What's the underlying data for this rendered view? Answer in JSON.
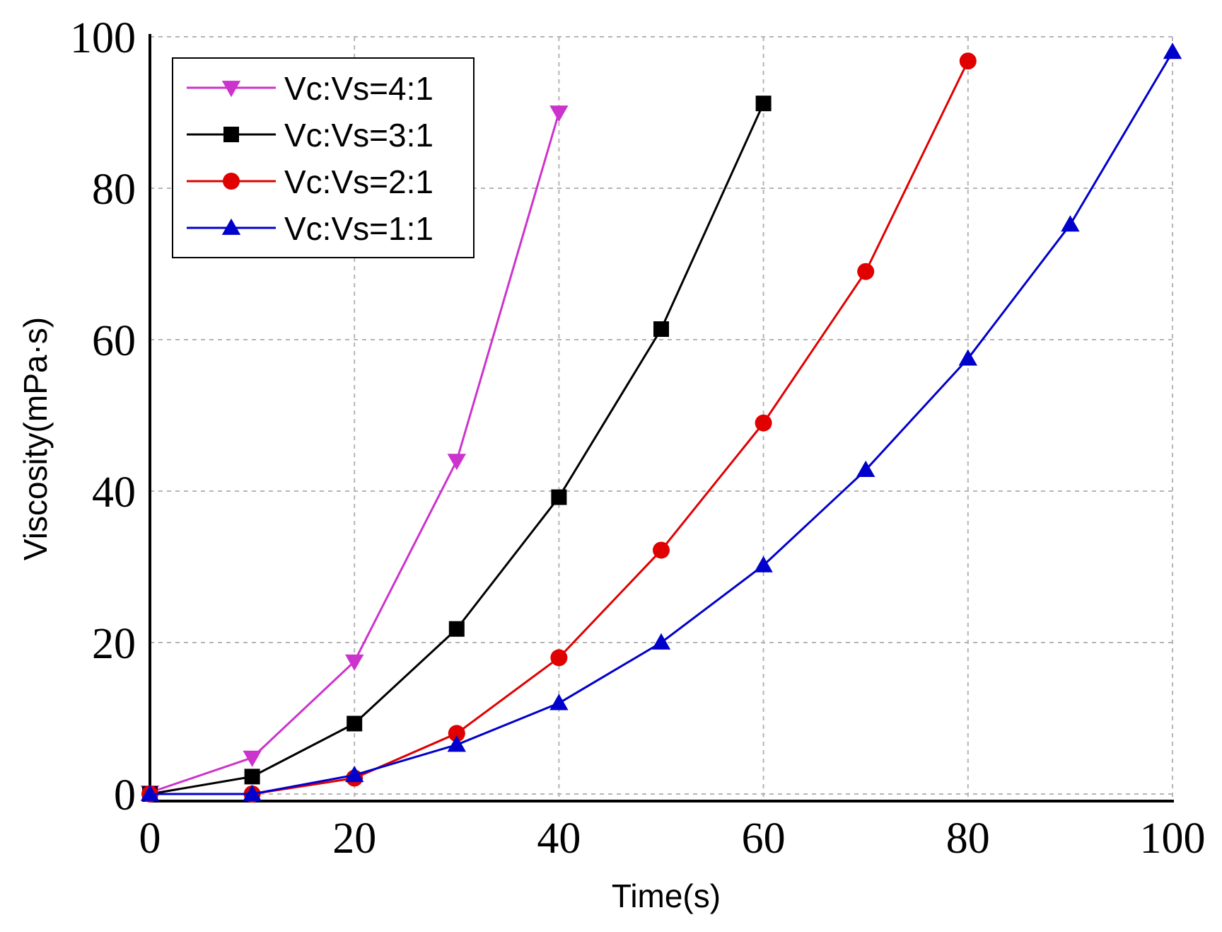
{
  "chart_data": {
    "type": "line",
    "title": "",
    "xlabel": "Time(s)",
    "ylabel": "Viscosity(mPa·s)",
    "xlim": [
      0,
      100
    ],
    "ylim": [
      -1,
      100
    ],
    "xticks": [
      "0",
      "20",
      "40",
      "60",
      "80",
      "100"
    ],
    "yticks": [
      "0",
      "20",
      "40",
      "60",
      "80",
      "100"
    ],
    "grid": true,
    "legend_position": "top-left",
    "series": [
      {
        "name": "Vc:Vs=4:1",
        "color": "#cc33cc",
        "marker": "triangle-down",
        "x": [
          0,
          10,
          20,
          30,
          40
        ],
        "y": [
          0.2,
          4.8,
          17.5,
          44,
          90
        ]
      },
      {
        "name": "Vc:Vs=3:1",
        "color": "#000000",
        "marker": "square",
        "x": [
          0,
          10,
          20,
          30,
          40,
          50,
          60
        ],
        "y": [
          0,
          2.3,
          9.3,
          21.8,
          39.2,
          61.4,
          91.2
        ]
      },
      {
        "name": "Vc:Vs=2:1",
        "color": "#e00000",
        "marker": "circle",
        "x": [
          0,
          10,
          20,
          30,
          40,
          50,
          60,
          70,
          80
        ],
        "y": [
          0,
          0,
          2.1,
          8,
          18,
          32.2,
          49,
          69,
          96.8
        ]
      },
      {
        "name": "Vc:Vs=1:1",
        "color": "#0000cc",
        "marker": "triangle-up",
        "x": [
          0,
          10,
          20,
          30,
          40,
          50,
          60,
          70,
          80,
          90,
          100
        ],
        "y": [
          0,
          0,
          2.5,
          6.5,
          12,
          20,
          30.2,
          42.8,
          57.5,
          75.2,
          98
        ]
      }
    ]
  }
}
